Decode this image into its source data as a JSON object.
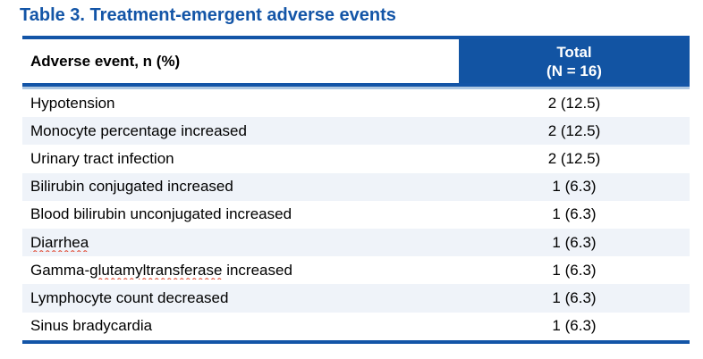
{
  "title": "Table 3. Treatment-emergent adverse events",
  "colors": {
    "title_text": "#1355A7",
    "header_bg": "#1254A3",
    "header_text": "#FFFFFF",
    "border": "#1355A7",
    "border_light": "#AEC8E2",
    "alt_row_bg": "#EFF3F9",
    "row_bg": "#FFFFFF",
    "body_text": "#000000",
    "squiggle": "#E03A21"
  },
  "table": {
    "columns": [
      {
        "label": "Adverse event, n (%)"
      },
      {
        "label": "Total",
        "sublabel": "(N = 16)"
      }
    ],
    "rows": [
      {
        "event": [
          {
            "text": "Hypotension"
          }
        ],
        "value": "2 (12.5)"
      },
      {
        "event": [
          {
            "text": "Monocyte percentage increased"
          }
        ],
        "value": "2 (12.5)"
      },
      {
        "event": [
          {
            "text": "Urinary tract infection"
          }
        ],
        "value": "2 (12.5)"
      },
      {
        "event": [
          {
            "text": "Bilirubin conjugated increased"
          }
        ],
        "value": "1 (6.3)"
      },
      {
        "event": [
          {
            "text": "Blood bilirubin unconjugated increased"
          }
        ],
        "value": "1 (6.3)"
      },
      {
        "event": [
          {
            "text": "Diarrhea",
            "misspelled": true
          }
        ],
        "value": "1 (6.3)"
      },
      {
        "event": [
          {
            "text": "Gamma-"
          },
          {
            "text": "glutamyltransferase",
            "misspelled": true
          },
          {
            "text": " increased"
          }
        ],
        "value": "1 (6.3)"
      },
      {
        "event": [
          {
            "text": "Lymphocyte count decreased"
          }
        ],
        "value": "1 (6.3)"
      },
      {
        "event": [
          {
            "text": "Sinus bradycardia"
          }
        ],
        "value": "1 (6.3)"
      }
    ]
  }
}
